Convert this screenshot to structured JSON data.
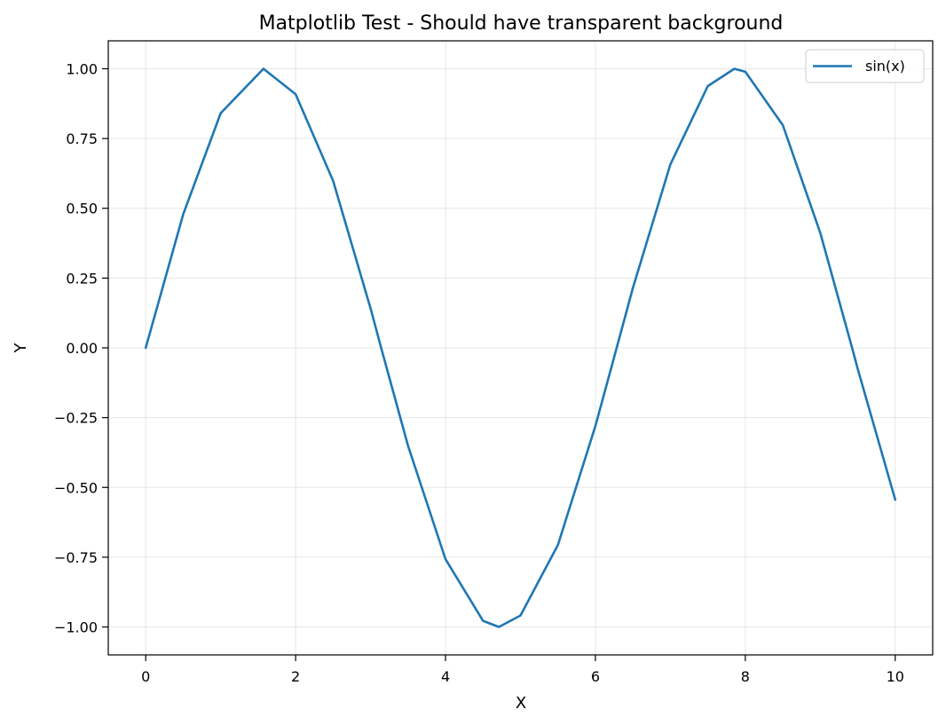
{
  "chart_data": {
    "type": "line",
    "title": "Matplotlib Test - Should have transparent background",
    "xlabel": "X",
    "ylabel": "Y",
    "xlim": [
      -0.5,
      10.5
    ],
    "ylim": [
      -1.1,
      1.1
    ],
    "xticks": [
      0,
      2,
      4,
      6,
      8,
      10
    ],
    "xtick_labels": [
      "0",
      "2",
      "4",
      "6",
      "8",
      "10"
    ],
    "yticks": [
      1.0,
      0.75,
      0.5,
      0.25,
      0.0,
      -0.25,
      -0.5,
      -0.75,
      -1.0
    ],
    "ytick_labels": [
      "1.00",
      "0.75",
      "0.50",
      "0.25",
      "0.00",
      "−0.25",
      "−0.50",
      "−0.75",
      "−1.00"
    ],
    "grid": true,
    "legend_position": "top-right",
    "series": [
      {
        "name": "sin(x)",
        "color": "#1f77b4",
        "x": [
          0,
          0.5,
          1.0,
          1.5708,
          2.0,
          2.5,
          3.0,
          3.1416,
          3.5,
          4.0,
          4.5,
          4.7124,
          5.0,
          5.5,
          6.0,
          6.2832,
          6.5,
          7.0,
          7.5,
          7.854,
          8.0,
          8.5,
          9.0,
          9.4248,
          9.5,
          10.0
        ],
        "y": [
          0,
          0.479,
          0.841,
          1.0,
          0.909,
          0.598,
          0.141,
          0.0,
          -0.351,
          -0.757,
          -0.978,
          -1.0,
          -0.959,
          -0.706,
          -0.279,
          0.0,
          0.215,
          0.657,
          0.938,
          1.0,
          0.989,
          0.798,
          0.412,
          0.0,
          -0.075,
          -0.544
        ]
      }
    ]
  }
}
